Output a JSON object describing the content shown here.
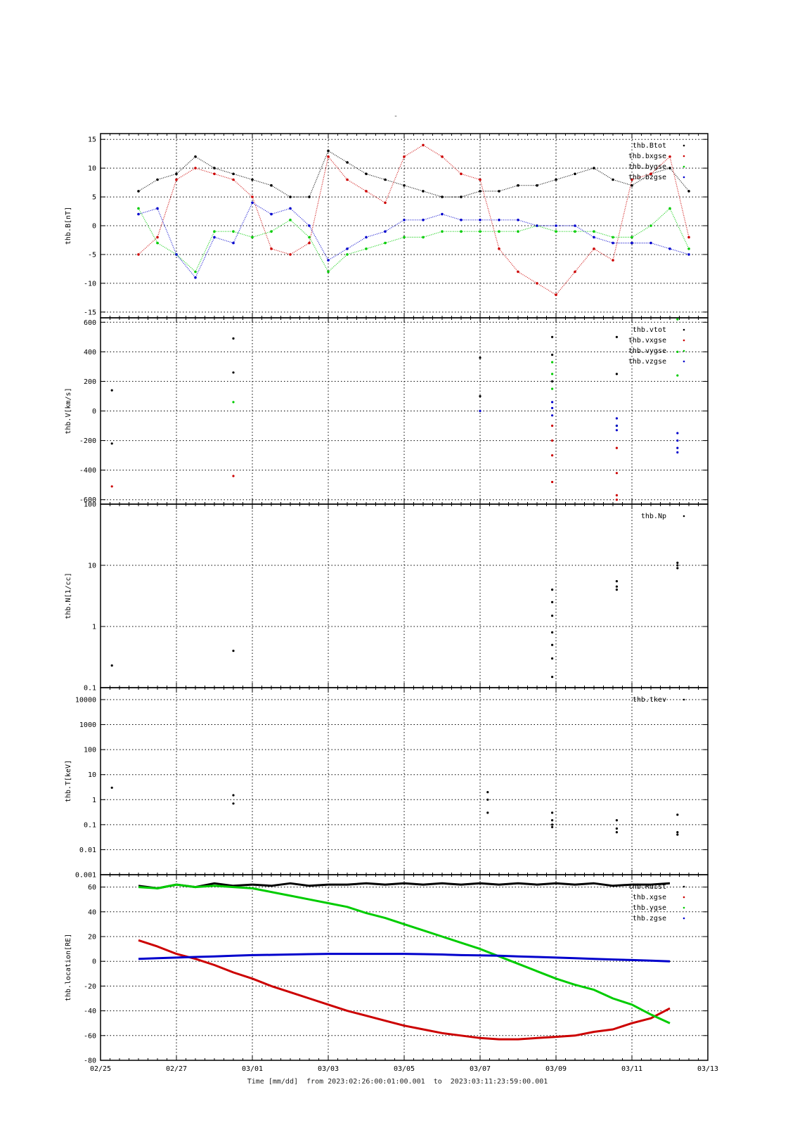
{
  "title": "-",
  "footer": {
    "time_label": "Time [mm/dd]",
    "from_word": "from",
    "from_value": "2023:02:26:00:01:00.001",
    "to_word": "to",
    "to_value": "2023:03:11:23:59:00.001"
  },
  "colors": {
    "black": "#000000",
    "red": "#cc0000",
    "green": "#00cc00",
    "blue": "#0000cc"
  },
  "chart_data": [
    {
      "type": "scatter",
      "ylabel": "thb.B[nT]",
      "x_ticks": [
        "02/25",
        "02/27",
        "03/01",
        "03/03",
        "03/05",
        "03/07",
        "03/09",
        "03/11",
        "03/13"
      ],
      "xlim_days": [
        0,
        16
      ],
      "yscale": "linear",
      "ylim": [
        -16,
        16
      ],
      "yticks": [
        15,
        10,
        5,
        0,
        -5,
        -10,
        -15
      ],
      "legend_position": "top-right",
      "grid": true,
      "series": [
        {
          "name": "thb.Btot",
          "color": "#000000",
          "x": [
            1,
            1.5,
            2,
            2.5,
            3,
            3.5,
            4,
            4.5,
            5,
            5.5,
            6,
            6.5,
            7,
            7.5,
            8,
            8.5,
            9,
            9.5,
            10,
            10.5,
            11,
            11.5,
            12,
            12.5,
            13,
            13.5,
            14,
            14.5,
            15,
            15.5
          ],
          "y": [
            6,
            8,
            9,
            12,
            10,
            9,
            8,
            7,
            5,
            5,
            13,
            11,
            9,
            8,
            7,
            6,
            5,
            5,
            6,
            6,
            7,
            7,
            8,
            9,
            10,
            8,
            7,
            9,
            10,
            6
          ]
        },
        {
          "name": "thb.bxgse",
          "color": "#cc0000",
          "x": [
            1,
            1.5,
            2,
            2.5,
            3,
            3.5,
            4,
            4.5,
            5,
            5.5,
            6,
            6.5,
            7,
            7.5,
            8,
            8.5,
            9,
            9.5,
            10,
            10.5,
            11,
            11.5,
            12,
            12.5,
            13,
            13.5,
            14,
            14.5,
            15,
            15.5
          ],
          "y": [
            -5,
            -2,
            8,
            10,
            9,
            8,
            5,
            -4,
            -5,
            -3,
            12,
            8,
            6,
            4,
            12,
            14,
            12,
            9,
            8,
            -4,
            -8,
            -10,
            -12,
            -8,
            -4,
            -6,
            8,
            9,
            12,
            -2
          ]
        },
        {
          "name": "thb.bygse",
          "color": "#00cc00",
          "x": [
            1,
            1.5,
            2,
            2.5,
            3,
            3.5,
            4,
            4.5,
            5,
            5.5,
            6,
            6.5,
            7,
            7.5,
            8,
            8.5,
            9,
            9.5,
            10,
            10.5,
            11,
            11.5,
            12,
            12.5,
            13,
            13.5,
            14,
            14.5,
            15,
            15.5
          ],
          "y": [
            3,
            -3,
            -5,
            -8,
            -1,
            -1,
            -2,
            -1,
            1,
            -2,
            -8,
            -5,
            -4,
            -3,
            -2,
            -2,
            -1,
            -1,
            -1,
            -1,
            -1,
            0,
            -1,
            -1,
            -1,
            -2,
            -2,
            0,
            3,
            -4
          ]
        },
        {
          "name": "thb.bzgse",
          "color": "#0000cc",
          "x": [
            1,
            1.5,
            2,
            2.5,
            3,
            3.5,
            4,
            4.5,
            5,
            5.5,
            6,
            6.5,
            7,
            7.5,
            8,
            8.5,
            9,
            9.5,
            10,
            10.5,
            11,
            11.5,
            12,
            12.5,
            13,
            13.5,
            14,
            14.5,
            15,
            15.5
          ],
          "y": [
            2,
            3,
            -5,
            -9,
            -2,
            -3,
            4,
            2,
            3,
            0,
            -6,
            -4,
            -2,
            -1,
            1,
            1,
            2,
            1,
            1,
            1,
            1,
            0,
            0,
            0,
            -2,
            -3,
            -3,
            -3,
            -4,
            -5
          ]
        }
      ]
    },
    {
      "type": "scatter",
      "ylabel": "thb.V[km/s]",
      "x_ticks": [
        "02/25",
        "02/27",
        "03/01",
        "03/03",
        "03/05",
        "03/07",
        "03/09",
        "03/11",
        "03/13"
      ],
      "xlim_days": [
        0,
        16
      ],
      "yscale": "linear",
      "ylim": [
        -630,
        630
      ],
      "yticks": [
        600,
        400,
        200,
        0,
        -200,
        -400,
        -600
      ],
      "legend_position": "top-right",
      "grid": true,
      "series": [
        {
          "name": "thb.vtot",
          "color": "#000000",
          "x": [
            0.3,
            0.3,
            3.5,
            3.5,
            10,
            10,
            11.9,
            11.9,
            11.9,
            13.6,
            13.6
          ],
          "y": [
            140,
            -220,
            490,
            260,
            360,
            100,
            500,
            380,
            200,
            500,
            250
          ]
        },
        {
          "name": "thb.vxgse",
          "color": "#cc0000",
          "x": [
            0.3,
            3.5,
            11.9,
            11.9,
            11.9,
            11.9,
            13.6,
            13.6,
            13.6,
            13.6
          ],
          "y": [
            -510,
            -440,
            -100,
            -300,
            -480,
            -200,
            -250,
            -420,
            -570,
            -600
          ]
        },
        {
          "name": "thb.vygse",
          "color": "#00cc00",
          "x": [
            3.5,
            11.9,
            11.9,
            11.9,
            13.6,
            15.2,
            15.2,
            15.2
          ],
          "y": [
            60,
            250,
            330,
            150,
            -100,
            620,
            400,
            240
          ]
        },
        {
          "name": "thb.vzgse",
          "color": "#0000cc",
          "x": [
            10,
            11.9,
            11.9,
            11.9,
            13.6,
            13.6,
            13.6,
            15.2,
            15.2,
            15.2,
            15.2
          ],
          "y": [
            0,
            20,
            -30,
            60,
            -50,
            -100,
            -130,
            -150,
            -200,
            -250,
            -280
          ]
        }
      ]
    },
    {
      "type": "scatter",
      "ylabel": "thb.N[1/cc]",
      "x_ticks": [
        "02/25",
        "02/27",
        "03/01",
        "03/03",
        "03/05",
        "03/07",
        "03/09",
        "03/11",
        "03/13"
      ],
      "xlim_days": [
        0,
        16
      ],
      "yscale": "log",
      "ylim": [
        0.1,
        100
      ],
      "yticks": [
        100,
        10,
        1,
        0.1
      ],
      "legend_position": "top-right",
      "grid": true,
      "series": [
        {
          "name": "thb.Np",
          "color": "#000000",
          "x": [
            0.3,
            3.5,
            11.9,
            11.9,
            11.9,
            11.9,
            11.9,
            11.9,
            11.9,
            13.6,
            13.6,
            13.6,
            15.2,
            15.2,
            15.2
          ],
          "y": [
            0.23,
            0.4,
            4,
            2.5,
            1.5,
            0.8,
            0.5,
            0.3,
            0.15,
            5.5,
            4.5,
            4,
            11,
            10,
            9
          ]
        }
      ]
    },
    {
      "type": "scatter",
      "ylabel": "thb.T[keV]",
      "x_ticks": [
        "02/25",
        "02/27",
        "03/01",
        "03/03",
        "03/05",
        "03/07",
        "03/09",
        "03/11",
        "03/13"
      ],
      "xlim_days": [
        0,
        16
      ],
      "yscale": "log",
      "ylim": [
        0.001,
        30000
      ],
      "yticks": [
        10000,
        1000,
        100,
        10,
        1,
        0.1,
        0.01,
        0.001
      ],
      "legend_position": "top-right",
      "grid": true,
      "series": [
        {
          "name": "thb.tkev",
          "color": "#000000",
          "x": [
            0.3,
            3.5,
            3.5,
            10.2,
            10.2,
            10.2,
            11.9,
            11.9,
            11.9,
            11.9,
            13.6,
            13.6,
            13.6,
            15.2,
            15.2,
            15.2
          ],
          "y": [
            3,
            1.5,
            0.7,
            2,
            1,
            0.3,
            0.3,
            0.15,
            0.1,
            0.08,
            0.15,
            0.07,
            0.05,
            0.25,
            0.05,
            0.04
          ]
        }
      ]
    },
    {
      "type": "line",
      "ylabel": "thb.location[RE]",
      "x_ticks": [
        "02/25",
        "02/27",
        "03/01",
        "03/03",
        "03/05",
        "03/07",
        "03/09",
        "03/11",
        "03/13"
      ],
      "xlim_days": [
        0,
        16
      ],
      "yscale": "linear",
      "ylim": [
        -80,
        70
      ],
      "yticks": [
        60,
        40,
        20,
        0,
        -20,
        -40,
        -60,
        -80
      ],
      "legend_position": "top-right",
      "grid": true,
      "series": [
        {
          "name": "thb.Rdist",
          "color": "#000000",
          "x": [
            1,
            1.5,
            2,
            2.5,
            3,
            3.5,
            4,
            4.5,
            5,
            5.5,
            6,
            6.5,
            7,
            7.5,
            8,
            8.5,
            9,
            9.5,
            10,
            10.5,
            11,
            11.5,
            12,
            12.5,
            13,
            13.5,
            14,
            14.5,
            15
          ],
          "y": [
            61,
            59,
            62,
            60,
            63,
            61,
            62,
            61,
            63,
            61,
            62,
            62,
            63,
            62,
            63,
            62,
            63,
            62,
            63,
            62,
            63,
            62,
            63,
            62,
            63,
            61,
            62,
            62,
            63
          ]
        },
        {
          "name": "thb.xgse",
          "color": "#cc0000",
          "x": [
            1,
            1.5,
            2,
            2.5,
            3,
            3.5,
            4,
            4.5,
            5,
            5.5,
            6,
            6.5,
            7,
            7.5,
            8,
            8.5,
            9,
            9.5,
            10,
            10.5,
            11,
            11.5,
            12,
            12.5,
            13,
            13.5,
            14,
            14.5,
            15
          ],
          "y": [
            17,
            12,
            6,
            2,
            -3,
            -9,
            -14,
            -20,
            -25,
            -30,
            -35,
            -40,
            -44,
            -48,
            -52,
            -55,
            -58,
            -60,
            -62,
            -63,
            -63,
            -62,
            -61,
            -60,
            -57,
            -55,
            -50,
            -46,
            -38
          ]
        },
        {
          "name": "thb.ygse",
          "color": "#00cc00",
          "x": [
            1,
            1.5,
            2,
            2.5,
            3,
            3.5,
            4,
            4.5,
            5,
            5.5,
            6,
            6.5,
            7,
            7.5,
            8,
            8.5,
            9,
            9.5,
            10,
            10.5,
            11,
            11.5,
            12,
            12.5,
            13,
            13.5,
            14,
            14.5,
            15
          ],
          "y": [
            60,
            59,
            62,
            60,
            61,
            60,
            59,
            56,
            53,
            50,
            47,
            44,
            39,
            35,
            30,
            25,
            20,
            15,
            10,
            4,
            -2,
            -8,
            -14,
            -19,
            -23,
            -30,
            -35,
            -43,
            -50
          ]
        },
        {
          "name": "thb.zgse",
          "color": "#0000cc",
          "x": [
            1,
            1.5,
            2,
            2.5,
            3,
            3.5,
            4,
            4.5,
            5,
            5.5,
            6,
            6.5,
            7,
            7.5,
            8,
            8.5,
            9,
            9.5,
            10,
            10.5,
            11,
            11.5,
            12,
            12.5,
            13,
            13.5,
            14,
            14.5,
            15
          ],
          "y": [
            2,
            2.5,
            3,
            3.5,
            4,
            4.5,
            5,
            5.2,
            5.5,
            5.8,
            6,
            6,
            6,
            6,
            6,
            5.8,
            5.5,
            5,
            4.8,
            4.5,
            4,
            3.5,
            3,
            2.5,
            2,
            1.5,
            1,
            0.5,
            0
          ]
        }
      ]
    }
  ]
}
